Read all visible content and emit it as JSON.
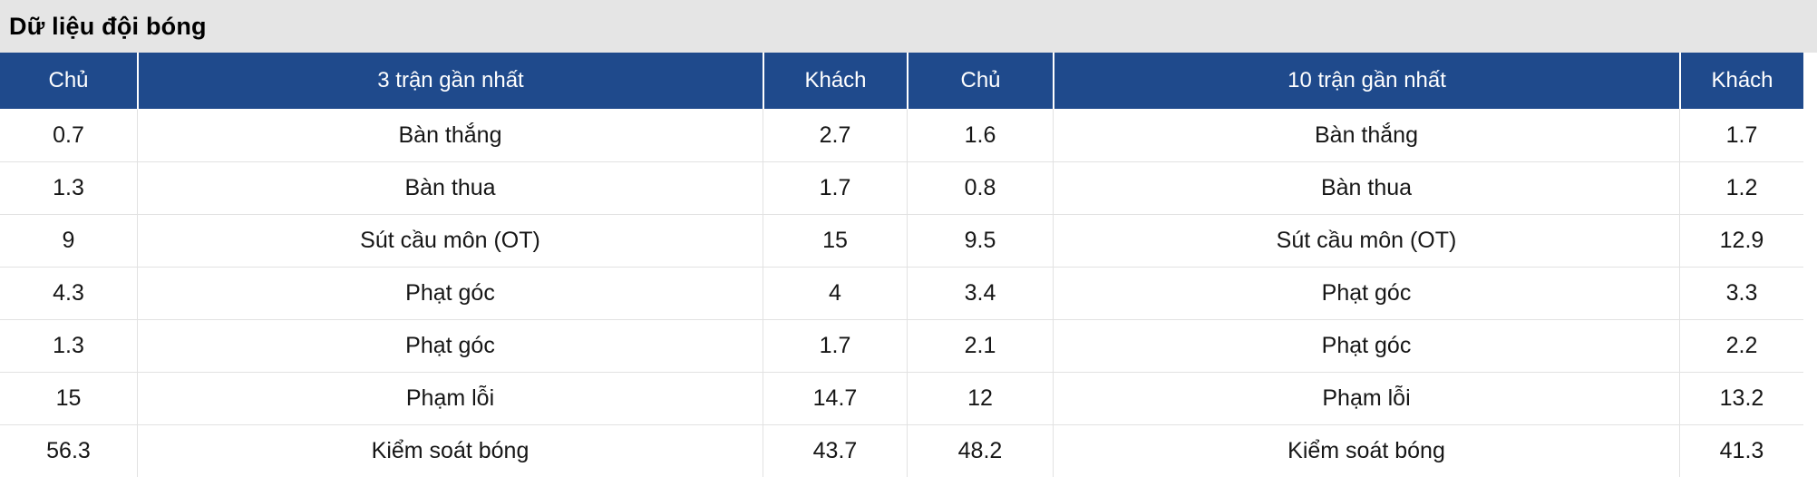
{
  "page": {
    "title": "Dữ liệu đội bóng"
  },
  "chart_data": {
    "type": "table",
    "title": "Dữ liệu đội bóng",
    "columns": [
      "Chủ",
      "3 trận gần nhất",
      "Khách",
      "Chủ",
      "10 trận gần nhất",
      "Khách"
    ],
    "rows": [
      [
        "0.7",
        "Bàn thắng",
        "2.7",
        "1.6",
        "Bàn thắng",
        "1.7"
      ],
      [
        "1.3",
        "Bàn thua",
        "1.7",
        "0.8",
        "Bàn thua",
        "1.2"
      ],
      [
        "9",
        "Sút cầu môn (OT)",
        "15",
        "9.5",
        "Sút cầu môn (OT)",
        "12.9"
      ],
      [
        "4.3",
        "Phạt góc",
        "4",
        "3.4",
        "Phạt góc",
        "3.3"
      ],
      [
        "1.3",
        "Phạt góc",
        "1.7",
        "2.1",
        "Phạt góc",
        "2.2"
      ],
      [
        "15",
        "Phạm lỗi",
        "14.7",
        "12",
        "Phạm lỗi",
        "13.2"
      ],
      [
        "56.3",
        "Kiểm soát bóng",
        "43.7",
        "48.2",
        "Kiểm soát bóng",
        "41.3"
      ]
    ],
    "layout": {
      "legend": "none",
      "grid": "row-and-column-dividers",
      "left_group": "3 trận gần nhất (home vs away averages)",
      "right_group": "10 trận gần nhất (home vs away averages)"
    }
  },
  "colors": {
    "header_bg": "#1f4a8c",
    "header_text": "#ffffff",
    "title_band_bg": "#e5e5e5",
    "title_text": "#000000",
    "cell_text": "#161616",
    "row_border": "#e2e2e2"
  }
}
